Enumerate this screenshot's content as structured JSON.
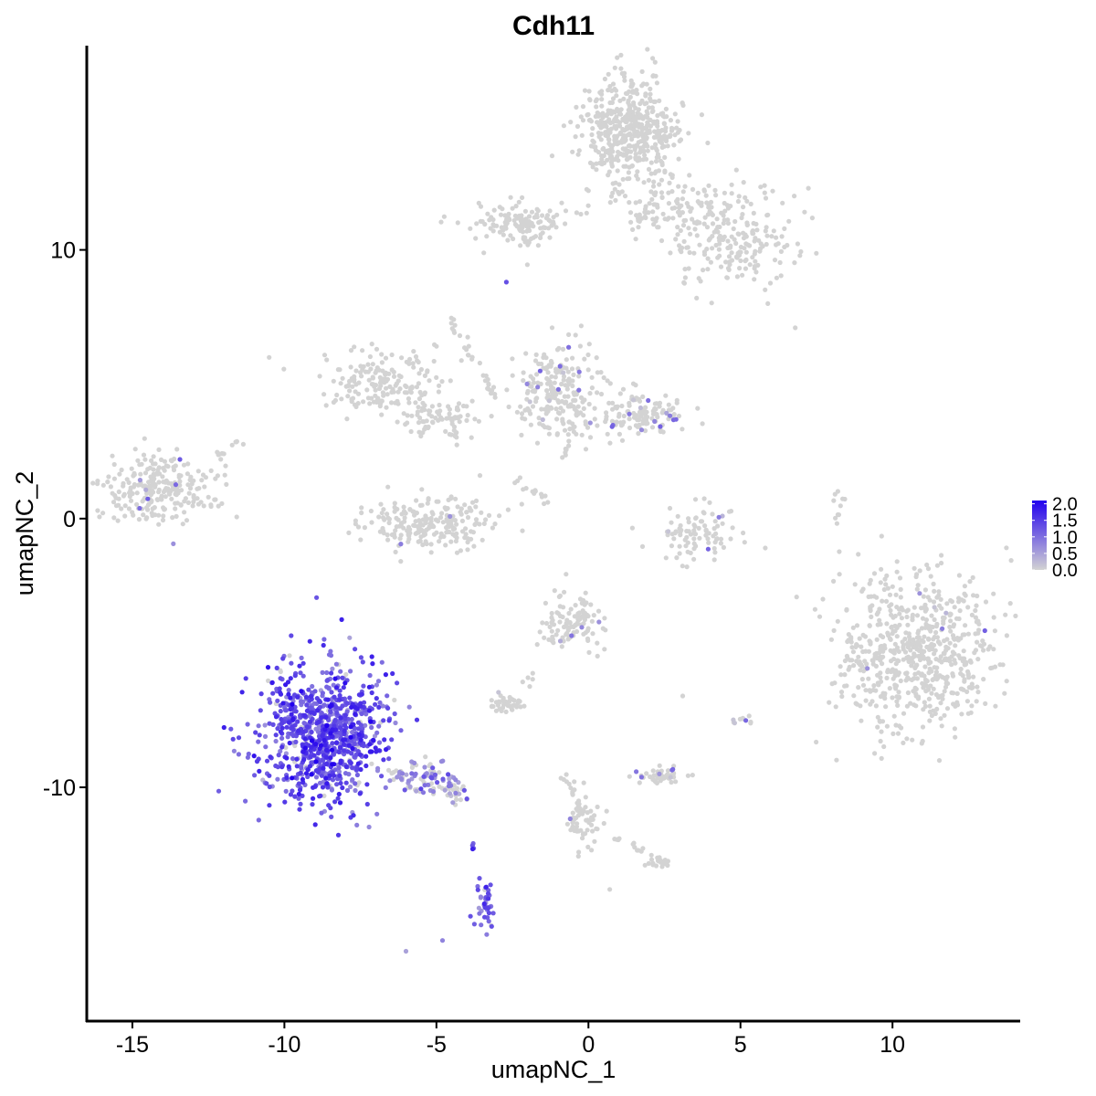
{
  "chart_data": {
    "type": "scatter",
    "title": "Cdh11",
    "xlabel": "umapNC_1",
    "ylabel": "umapNC_2",
    "xlim": [
      -16.5,
      14.2
    ],
    "ylim": [
      -18.7,
      17.6
    ],
    "x_ticks": [
      -15,
      -10,
      -5,
      0,
      5,
      10
    ],
    "x_tick_labels": [
      "-15",
      "-10",
      "-5",
      "0",
      "5",
      "10"
    ],
    "y_ticks": [
      -10,
      0,
      10
    ],
    "y_tick_labels": [
      "-10",
      "0",
      "10"
    ],
    "grid": false,
    "legend_position": "right",
    "colorbar": {
      "low_color": "#d3d3d3",
      "high_color": "#2200ee",
      "min": 0.0,
      "max": 2.1,
      "ticks": [
        2.0,
        1.5,
        1.0,
        0.5,
        0.0
      ],
      "tick_labels": [
        "2.0",
        "1.5",
        "1.0",
        "0.5",
        "0.0"
      ]
    },
    "clusters": [
      {
        "center": [
          -8.7,
          -8.0
        ],
        "spread": [
          1.0,
          1.3
        ],
        "n": 900,
        "expr_mean": 1.3,
        "expr_frac": 0.95
      },
      {
        "center": [
          -5.5,
          -9.6
        ],
        "spread": [
          0.6,
          0.3
        ],
        "n": 80,
        "expr_mean": 0.8,
        "expr_frac": 0.6
      },
      {
        "center": [
          -4.4,
          -10.2
        ],
        "spread": [
          0.3,
          0.2
        ],
        "n": 30,
        "expr_mean": 0.7,
        "expr_frac": 0.5
      },
      {
        "center": [
          -3.4,
          -14.3
        ],
        "spread": [
          0.15,
          0.5
        ],
        "n": 40,
        "expr_mean": 1.1,
        "expr_frac": 0.9
      },
      {
        "center": [
          -3.8,
          -12.3
        ],
        "spread": [
          0.05,
          0.2
        ],
        "n": 4,
        "expr_mean": 1.2,
        "expr_frac": 1.0
      },
      {
        "center": [
          1.4,
          14.4
        ],
        "spread": [
          0.8,
          1.0
        ],
        "n": 500,
        "expr_mean": 0.0,
        "expr_frac": 0.0
      },
      {
        "center": [
          -2.2,
          11.0
        ],
        "spread": [
          0.8,
          0.4
        ],
        "n": 130,
        "expr_mean": 0.0,
        "expr_frac": 0.0
      },
      {
        "center": [
          4.7,
          10.5
        ],
        "spread": [
          1.1,
          0.9
        ],
        "n": 220,
        "expr_mean": 0.0,
        "expr_frac": 0.0
      },
      {
        "center": [
          2.5,
          11.4
        ],
        "spread": [
          0.9,
          0.6
        ],
        "n": 80,
        "expr_mean": 0.0,
        "expr_frac": 0.0
      },
      {
        "center": [
          -6.8,
          5.1
        ],
        "spread": [
          0.9,
          0.6
        ],
        "n": 170,
        "expr_mean": 0.0,
        "expr_frac": 0.0
      },
      {
        "center": [
          -4.9,
          3.8
        ],
        "spread": [
          0.7,
          0.4
        ],
        "n": 70,
        "expr_mean": 0.0,
        "expr_frac": 0.0
      },
      {
        "center": [
          -1.0,
          4.8
        ],
        "spread": [
          0.7,
          0.9
        ],
        "n": 220,
        "expr_mean": 0.0,
        "expr_frac": 0.02
      },
      {
        "center": [
          1.7,
          3.9
        ],
        "spread": [
          0.8,
          0.4
        ],
        "n": 130,
        "expr_mean": 0.0,
        "expr_frac": 0.03
      },
      {
        "center": [
          -5.2,
          -0.2
        ],
        "spread": [
          1.1,
          0.5
        ],
        "n": 220,
        "expr_mean": 0.0,
        "expr_frac": 0.01
      },
      {
        "center": [
          -14.0,
          1.1
        ],
        "spread": [
          0.9,
          0.6
        ],
        "n": 260,
        "expr_mean": 0.0,
        "expr_frac": 0.01
      },
      {
        "center": [
          3.5,
          -0.5
        ],
        "spread": [
          0.7,
          0.5
        ],
        "n": 90,
        "expr_mean": 0.0,
        "expr_frac": 0.03
      },
      {
        "center": [
          10.7,
          -5.0
        ],
        "spread": [
          1.3,
          1.5
        ],
        "n": 650,
        "expr_mean": 0.0,
        "expr_frac": 0.01
      },
      {
        "center": [
          -0.6,
          -3.9
        ],
        "spread": [
          0.5,
          0.6
        ],
        "n": 110,
        "expr_mean": 0.0,
        "expr_frac": 0.03
      },
      {
        "center": [
          -2.6,
          -6.9
        ],
        "spread": [
          0.3,
          0.15
        ],
        "n": 40,
        "expr_mean": 0.0,
        "expr_frac": 0.03
      },
      {
        "center": [
          2.4,
          -9.6
        ],
        "spread": [
          0.4,
          0.15
        ],
        "n": 50,
        "expr_mean": 0.0,
        "expr_frac": 0.05
      },
      {
        "center": [
          -0.2,
          -11.3
        ],
        "spread": [
          0.3,
          0.5
        ],
        "n": 50,
        "expr_mean": 0.0,
        "expr_frac": 0.03
      },
      {
        "center": [
          2.3,
          -12.8
        ],
        "spread": [
          0.2,
          0.1
        ],
        "n": 20,
        "expr_mean": 0.0,
        "expr_frac": 0.0
      },
      {
        "center": [
          5.0,
          -7.5
        ],
        "spread": [
          0.2,
          0.1
        ],
        "n": 10,
        "expr_mean": 0.0,
        "expr_frac": 0.1
      }
    ],
    "streaks": [
      {
        "from": [
          -4.6,
          7.6
        ],
        "to": [
          -3.0,
          4.4
        ],
        "n": 30,
        "expr_frac": 0.0
      },
      {
        "from": [
          -4.3,
          2.5
        ],
        "to": [
          -4.6,
          4.0
        ],
        "n": 12,
        "expr_frac": 0.0
      },
      {
        "from": [
          -2.4,
          1.5
        ],
        "to": [
          -1.3,
          0.6
        ],
        "n": 14,
        "expr_frac": 0.0
      },
      {
        "from": [
          -0.9,
          2.3
        ],
        "to": [
          -0.4,
          3.6
        ],
        "n": 10,
        "expr_frac": 0.0
      },
      {
        "from": [
          -12.5,
          2.1
        ],
        "to": [
          -11.4,
          2.9
        ],
        "n": 12,
        "expr_frac": 0.0
      },
      {
        "from": [
          8.1,
          -0.3
        ],
        "to": [
          8.3,
          1.0
        ],
        "n": 10,
        "expr_frac": 0.0
      },
      {
        "from": [
          -0.9,
          -9.3
        ],
        "to": [
          -0.1,
          -11.0
        ],
        "n": 20,
        "expr_frac": 0.0
      },
      {
        "from": [
          0.6,
          -11.7
        ],
        "to": [
          2.1,
          -12.6
        ],
        "n": 12,
        "expr_frac": 0.0
      },
      {
        "from": [
          -2.1,
          -6.2
        ],
        "to": [
          -1.8,
          -5.7
        ],
        "n": 5,
        "expr_frac": 0.0
      }
    ],
    "single_points": [
      {
        "x": -2.7,
        "y": 8.8,
        "expr": 1.3
      },
      {
        "x": -10.5,
        "y": 6.0,
        "expr": 0.0
      },
      {
        "x": 6.8,
        "y": 7.1,
        "expr": 0.0
      },
      {
        "x": 5.9,
        "y": 8.0,
        "expr": 0.0
      },
      {
        "x": -6.0,
        "y": -16.1,
        "expr": 0.5
      },
      {
        "x": -4.8,
        "y": -15.7,
        "expr": 0.8
      },
      {
        "x": 0.7,
        "y": -13.8,
        "expr": 0.0
      },
      {
        "x": 3.1,
        "y": -6.6,
        "expr": 0.0
      }
    ]
  }
}
